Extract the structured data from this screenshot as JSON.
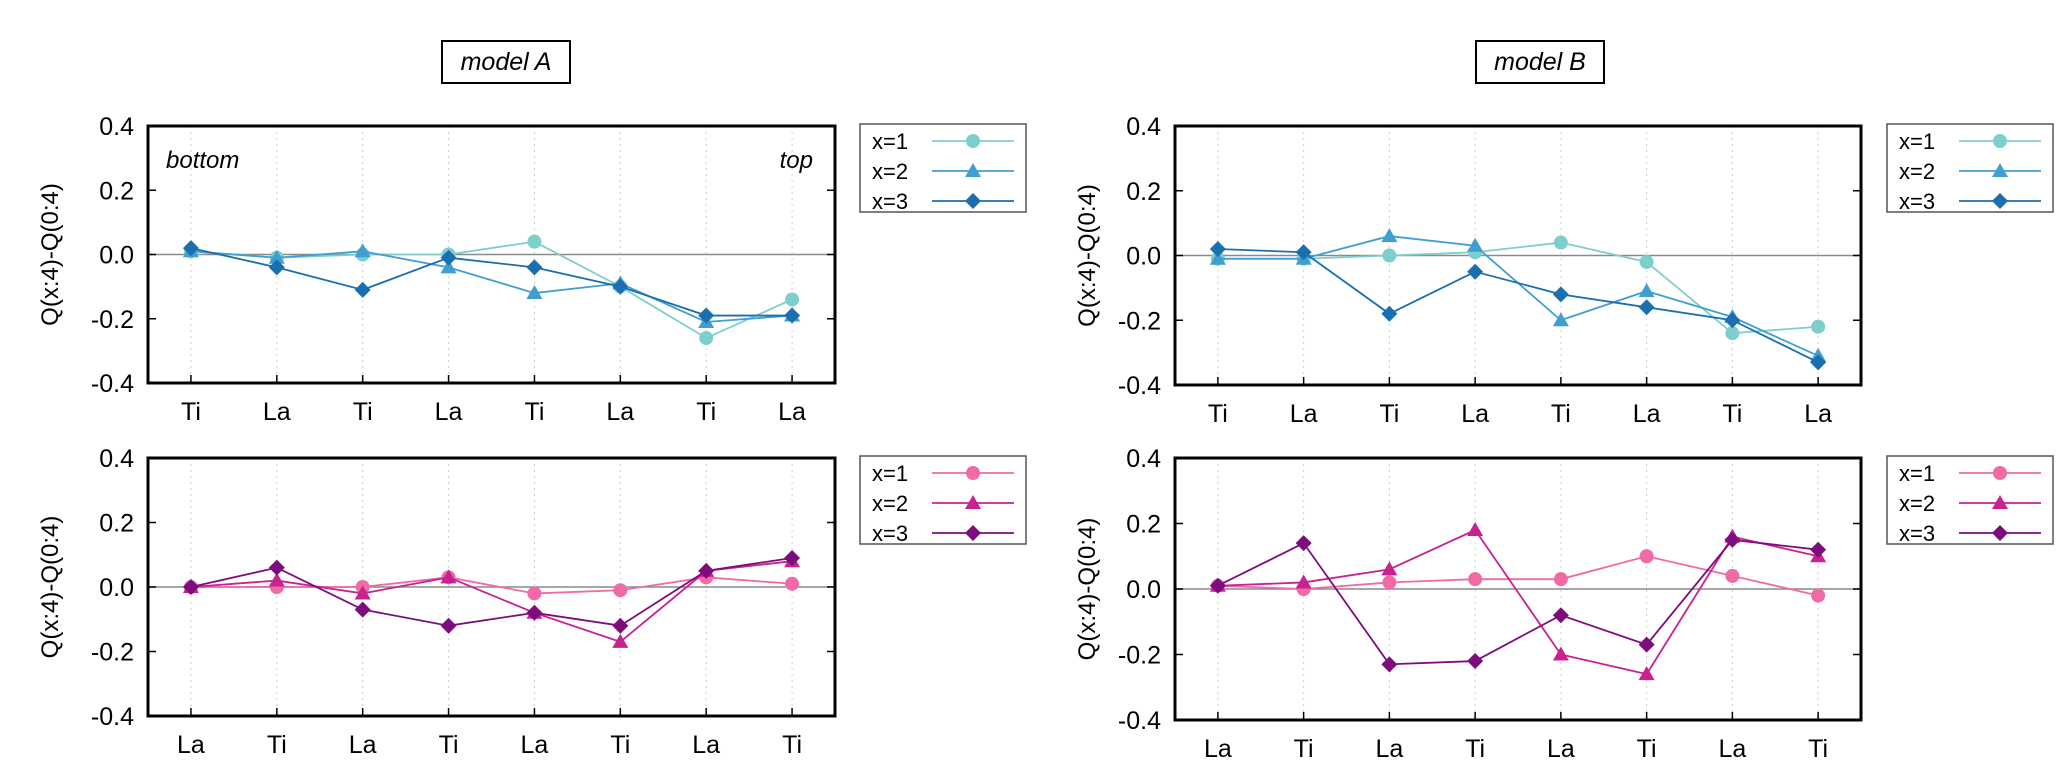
{
  "figure": {
    "panels": [
      {
        "id": "panel-a-top",
        "model_title": "model A",
        "annotations": {
          "left": "bottom",
          "right": "top"
        }
      },
      {
        "id": "panel-b-top",
        "model_title": "model B",
        "annotations": null
      },
      {
        "id": "panel-a-bottom",
        "model_title": null,
        "annotations": null
      },
      {
        "id": "panel-b-bottom",
        "model_title": null,
        "annotations": null
      }
    ]
  },
  "chart_data": [
    {
      "type": "line",
      "title": "model A",
      "xlabel": "",
      "ylabel": "Q(x:4)-Q(0:4)",
      "ylim": [
        -0.4,
        0.4
      ],
      "yticks": [
        "0.4",
        "0.2",
        "0.0",
        "-0.2",
        "-0.4"
      ],
      "categories": [
        "Ti",
        "La",
        "Ti",
        "La",
        "Ti",
        "La",
        "Ti",
        "La"
      ],
      "legend_position": "right",
      "series": [
        {
          "name": "x=1",
          "marker": "circle",
          "color": "#7dcfcb",
          "values": [
            0.01,
            -0.01,
            0.0,
            0.0,
            0.04,
            -0.1,
            -0.26,
            -0.14
          ]
        },
        {
          "name": "x=2",
          "marker": "triangle",
          "color": "#3f9fd1",
          "values": [
            0.01,
            -0.01,
            0.01,
            -0.04,
            -0.12,
            -0.09,
            -0.21,
            -0.19
          ]
        },
        {
          "name": "x=3",
          "marker": "diamond",
          "color": "#1a6fb0",
          "values": [
            0.02,
            -0.04,
            -0.11,
            -0.01,
            -0.04,
            -0.1,
            -0.19,
            -0.19
          ]
        }
      ]
    },
    {
      "type": "line",
      "title": "model B",
      "xlabel": "",
      "ylabel": "Q(x:4)-Q(0:4)",
      "ylim": [
        -0.4,
        0.4
      ],
      "yticks": [
        "0.4",
        "0.2",
        "0.0",
        "-0.2",
        "-0.4"
      ],
      "categories": [
        "Ti",
        "La",
        "Ti",
        "La",
        "Ti",
        "La",
        "Ti",
        "La"
      ],
      "legend_position": "right",
      "series": [
        {
          "name": "x=1",
          "marker": "circle",
          "color": "#7dcfcb",
          "values": [
            -0.01,
            -0.01,
            0.0,
            0.01,
            0.04,
            -0.02,
            -0.24,
            -0.22
          ]
        },
        {
          "name": "x=2",
          "marker": "triangle",
          "color": "#3f9fd1",
          "values": [
            -0.01,
            -0.01,
            0.06,
            0.03,
            -0.2,
            -0.11,
            -0.19,
            -0.31
          ]
        },
        {
          "name": "x=3",
          "marker": "diamond",
          "color": "#1a6fb0",
          "values": [
            0.02,
            0.01,
            -0.18,
            -0.05,
            -0.12,
            -0.16,
            -0.2,
            -0.33
          ]
        }
      ]
    },
    {
      "type": "line",
      "title": "",
      "xlabel": "",
      "ylabel": "Q(x:4)-Q(0:4)",
      "ylim": [
        -0.4,
        0.4
      ],
      "yticks": [
        "0.4",
        "0.2",
        "0.0",
        "-0.2",
        "-0.4"
      ],
      "categories": [
        "La",
        "Ti",
        "La",
        "Ti",
        "La",
        "Ti",
        "La",
        "Ti"
      ],
      "legend_position": "right",
      "series": [
        {
          "name": "x=1",
          "marker": "circle",
          "color": "#f06aa6",
          "values": [
            0.0,
            0.0,
            0.0,
            0.03,
            -0.02,
            -0.01,
            0.03,
            0.01
          ]
        },
        {
          "name": "x=2",
          "marker": "triangle",
          "color": "#c72290",
          "values": [
            0.0,
            0.02,
            -0.02,
            0.03,
            -0.08,
            -0.17,
            0.05,
            0.08
          ]
        },
        {
          "name": "x=3",
          "marker": "diamond",
          "color": "#7d0d7d",
          "values": [
            0.0,
            0.06,
            -0.07,
            -0.12,
            -0.08,
            -0.12,
            0.05,
            0.09
          ]
        }
      ]
    },
    {
      "type": "line",
      "title": "",
      "xlabel": "",
      "ylabel": "Q(x:4)-Q(0:4)",
      "ylim": [
        -0.4,
        0.4
      ],
      "yticks": [
        "0.4",
        "0.2",
        "0.0",
        "-0.2",
        "-0.4"
      ],
      "categories": [
        "La",
        "Ti",
        "La",
        "Ti",
        "La",
        "Ti",
        "La",
        "Ti"
      ],
      "legend_position": "right",
      "series": [
        {
          "name": "x=1",
          "marker": "circle",
          "color": "#f06aa6",
          "values": [
            0.01,
            0.0,
            0.02,
            0.03,
            0.03,
            0.1,
            0.04,
            -0.02
          ]
        },
        {
          "name": "x=2",
          "marker": "triangle",
          "color": "#c72290",
          "values": [
            0.01,
            0.02,
            0.06,
            0.18,
            -0.2,
            -0.26,
            0.16,
            0.1
          ]
        },
        {
          "name": "x=3",
          "marker": "diamond",
          "color": "#7d0d7d",
          "values": [
            0.01,
            0.14,
            -0.23,
            -0.22,
            -0.08,
            -0.17,
            0.15,
            0.12
          ]
        }
      ]
    }
  ]
}
